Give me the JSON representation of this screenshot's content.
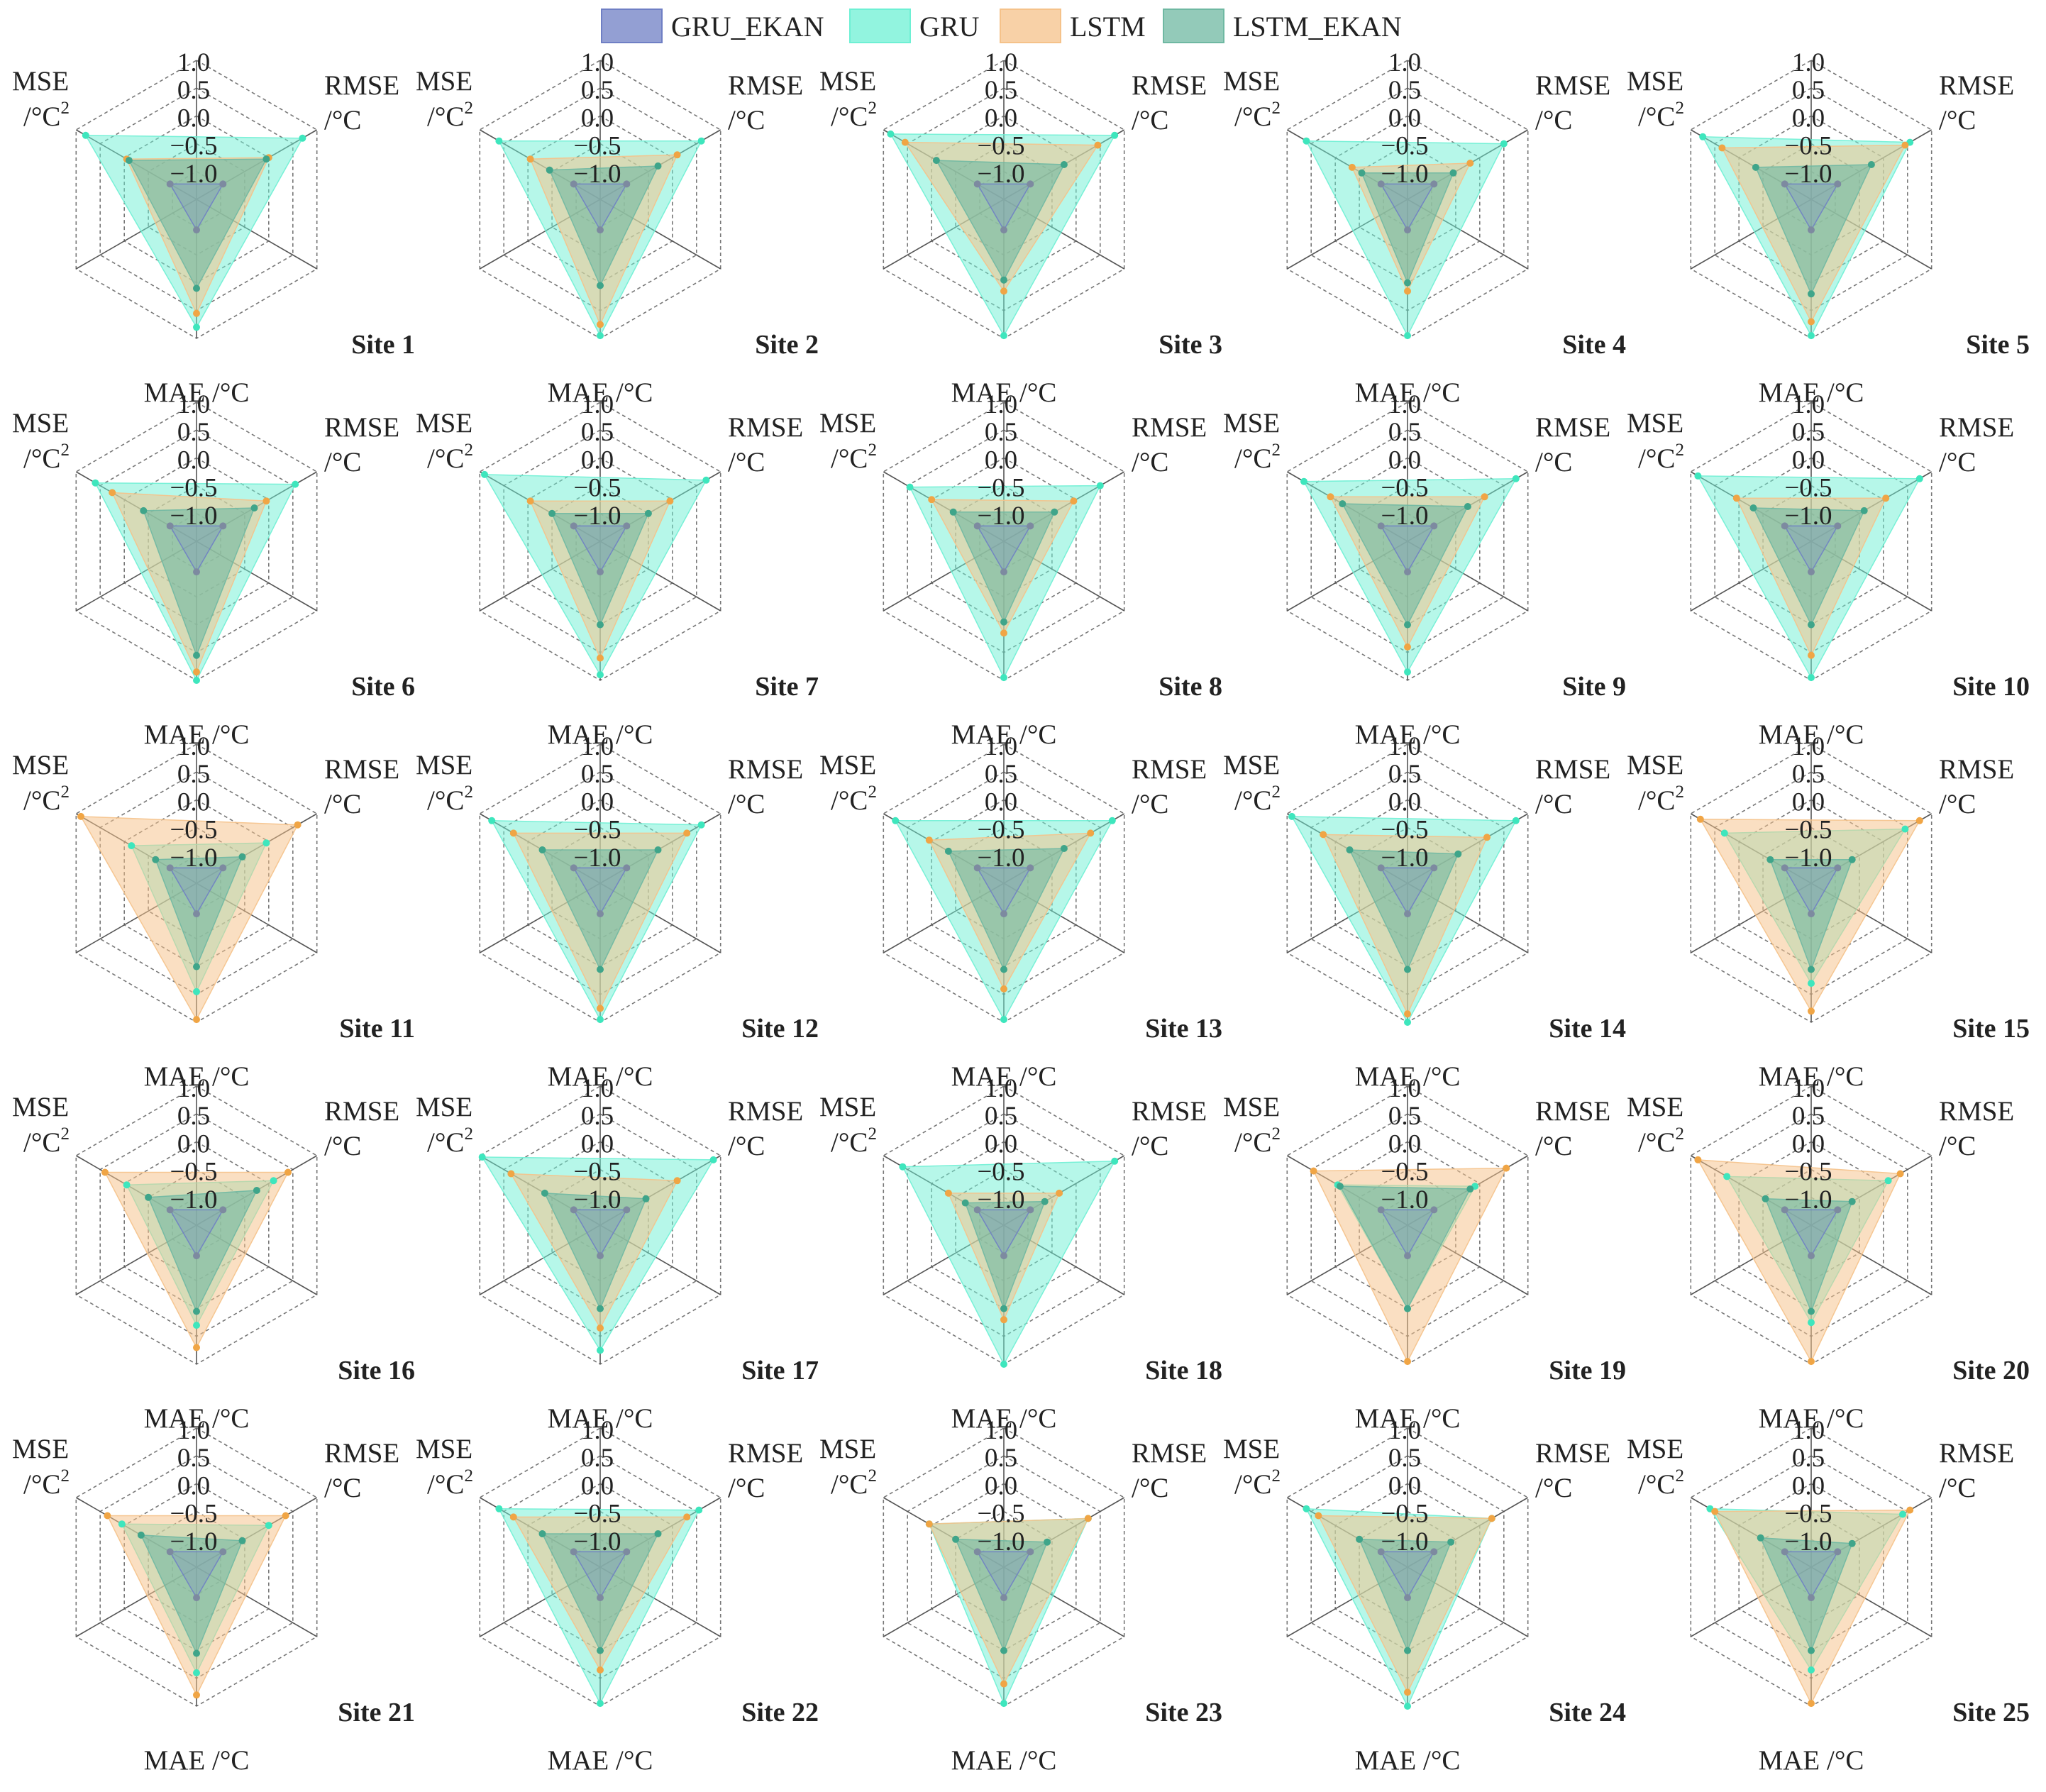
{
  "chart_data": {
    "type": "radar",
    "legend": [
      {
        "name": "GRU_EKAN",
        "color": "#6f7fc4"
      },
      {
        "name": "GRU",
        "color": "#6ef0d4"
      },
      {
        "name": "LSTM",
        "color": "#f5c28a"
      },
      {
        "name": "LSTM_EKAN",
        "color": "#6fb8a2"
      }
    ],
    "marker_colors": {
      "GRU": "#3ee6bd",
      "LSTM": "#f0a545",
      "LSTM_EKAN": "#3fa58a",
      "GRU_EKAN": "#7d8aa0"
    },
    "axes": [
      {
        "name": "MSE",
        "unit": "/°C²",
        "unit_base": "/°C",
        "unit_sup": "2"
      },
      {
        "name": "RMSE",
        "unit": "/°C"
      },
      {
        "name": "MAE",
        "unit": "/°C"
      }
    ],
    "rlim": [
      -1.5,
      1.0
    ],
    "rticks": [
      "1.0",
      "0.5",
      "0.0",
      "−0.5",
      "−1.0"
    ],
    "panels": [
      {
        "site": "Site 1",
        "series": {
          "GRU": [
            0.8,
            0.7,
            0.8
          ],
          "LSTM": [
            -0.05,
            0.0,
            0.55
          ],
          "LSTM_EKAN": [
            -0.1,
            -0.05,
            0.1
          ],
          "GRU_EKAN": [
            -0.95,
            -0.95,
            -0.95
          ]
        }
      },
      {
        "site": "Site 2",
        "series": {
          "GRU": [
            0.6,
            0.6,
            0.95
          ],
          "LSTM": [
            -0.05,
            0.1,
            0.75
          ],
          "LSTM_EKAN": [
            -0.45,
            -0.3,
            0.05
          ],
          "GRU_EKAN": [
            -0.95,
            -0.95,
            -0.95
          ]
        }
      },
      {
        "site": "Site 3",
        "series": {
          "GRU": [
            0.85,
            0.8,
            0.95
          ],
          "LSTM": [
            0.55,
            0.45,
            0.15
          ],
          "LSTM_EKAN": [
            -0.1,
            -0.25,
            -0.05
          ],
          "GRU_EKAN": [
            -0.95,
            -0.95,
            -0.95
          ]
        }
      },
      {
        "site": "Site 4",
        "series": {
          "GRU": [
            0.6,
            0.5,
            0.95
          ],
          "LSTM": [
            -0.35,
            -0.2,
            0.15
          ],
          "LSTM_EKAN": [
            -0.55,
            -0.55,
            0.0
          ],
          "GRU_EKAN": [
            -0.95,
            -0.95,
            -0.95
          ]
        }
      },
      {
        "site": "Site 5",
        "series": {
          "GRU": [
            0.75,
            0.55,
            0.95
          ],
          "LSTM": [
            0.35,
            0.45,
            0.7
          ],
          "LSTM_EKAN": [
            -0.35,
            -0.25,
            0.2
          ],
          "GRU_EKAN": [
            -0.95,
            -0.95,
            -0.95
          ]
        }
      },
      {
        "site": "Site 6",
        "series": {
          "GRU": [
            0.6,
            0.55,
            1.0
          ],
          "LSTM": [
            0.25,
            -0.05,
            0.85
          ],
          "LSTM_EKAN": [
            -0.4,
            -0.3,
            0.55
          ],
          "GRU_EKAN": [
            -0.95,
            -0.95,
            -0.95
          ]
        }
      },
      {
        "site": "Site 7",
        "series": {
          "GRU": [
            0.9,
            0.7,
            0.9
          ],
          "LSTM": [
            -0.05,
            -0.05,
            0.6
          ],
          "LSTM_EKAN": [
            -0.5,
            -0.5,
            0.0
          ],
          "GRU_EKAN": [
            -0.95,
            -0.95,
            -0.95
          ]
        }
      },
      {
        "site": "Site 8",
        "series": {
          "GRU": [
            0.45,
            0.5,
            0.95
          ],
          "LSTM": [
            0.0,
            -0.05,
            0.15
          ],
          "LSTM_EKAN": [
            -0.45,
            -0.45,
            -0.05
          ],
          "GRU_EKAN": [
            -0.95,
            -0.95,
            -0.95
          ]
        }
      },
      {
        "site": "Site 9",
        "series": {
          "GRU": [
            0.65,
            0.75,
            0.85
          ],
          "LSTM": [
            0.1,
            0.1,
            0.4
          ],
          "LSTM_EKAN": [
            -0.15,
            -0.25,
            0.0
          ],
          "GRU_EKAN": [
            -0.95,
            -0.95,
            -0.95
          ]
        }
      },
      {
        "site": "Site 10",
        "series": {
          "GRU": [
            0.85,
            0.75,
            0.95
          ],
          "LSTM": [
            0.05,
            0.05,
            0.55
          ],
          "LSTM_EKAN": [
            -0.3,
            -0.4,
            0.0
          ],
          "GRU_EKAN": [
            -0.95,
            -0.95,
            -0.95
          ]
        }
      },
      {
        "site": "Site 11",
        "series": {
          "GRU": [
            -0.15,
            -0.05,
            0.45
          ],
          "LSTM": [
            0.9,
            0.6,
            0.95
          ],
          "LSTM_EKAN": [
            -0.65,
            -0.55,
            0.0
          ],
          "GRU_EKAN": [
            -0.95,
            -0.95,
            -0.95
          ]
        }
      },
      {
        "site": "Site 12",
        "series": {
          "GRU": [
            0.75,
            0.6,
            0.95
          ],
          "LSTM": [
            0.3,
            0.3,
            0.75
          ],
          "LSTM_EKAN": [
            -0.3,
            -0.3,
            0.05
          ],
          "GRU_EKAN": [
            -0.95,
            -0.95,
            -0.95
          ]
        }
      },
      {
        "site": "Site 13",
        "series": {
          "GRU": [
            0.75,
            0.75,
            0.95
          ],
          "LSTM": [
            0.05,
            0.3,
            0.4
          ],
          "LSTM_EKAN": [
            -0.35,
            -0.25,
            0.05
          ],
          "GRU_EKAN": [
            -0.95,
            -0.95,
            -0.95
          ]
        }
      },
      {
        "site": "Site 14",
        "series": {
          "GRU": [
            0.9,
            0.75,
            1.0
          ],
          "LSTM": [
            0.25,
            0.15,
            0.85
          ],
          "LSTM_EKAN": [
            -0.3,
            -0.45,
            0.05
          ],
          "GRU_EKAN": [
            -0.95,
            -0.95,
            -0.95
          ]
        }
      },
      {
        "site": "Site 15",
        "series": {
          "GRU": [
            0.3,
            0.45,
            0.3
          ],
          "LSTM": [
            0.8,
            0.75,
            0.8
          ],
          "LSTM_EKAN": [
            -0.65,
            -0.65,
            0.05
          ],
          "GRU_EKAN": [
            -0.95,
            -0.95,
            -0.95
          ]
        }
      },
      {
        "site": "Site 16",
        "series": {
          "GRU": [
            -0.05,
            0.1,
            0.3
          ],
          "LSTM": [
            0.4,
            0.4,
            0.7
          ],
          "LSTM_EKAN": [
            -0.5,
            -0.25,
            0.05
          ],
          "GRU_EKAN": [
            -0.95,
            -0.95,
            -0.95
          ]
        }
      },
      {
        "site": "Site 17",
        "series": {
          "GRU": [
            0.95,
            0.85,
            0.75
          ],
          "LSTM": [
            0.35,
            0.1,
            0.35
          ],
          "LSTM_EKAN": [
            -0.35,
            -0.55,
            0.0
          ],
          "GRU_EKAN": [
            -0.95,
            -0.95,
            -0.95
          ]
        }
      },
      {
        "site": "Site 18",
        "series": {
          "GRU": [
            0.6,
            0.8,
            1.0
          ],
          "LSTM": [
            -0.35,
            -0.35,
            0.2
          ],
          "LSTM_EKAN": [
            -0.7,
            -0.65,
            0.0
          ],
          "GRU_EKAN": [
            -0.95,
            -0.95,
            -0.95
          ]
        }
      },
      {
        "site": "Site 19",
        "series": {
          "GRU": [
            -0.05,
            -0.1,
            0.0
          ],
          "LSTM": [
            0.45,
            0.55,
            0.95
          ],
          "LSTM_EKAN": [
            -0.1,
            -0.2,
            0.0
          ],
          "GRU_EKAN": [
            -0.95,
            -0.95,
            -0.95
          ]
        }
      },
      {
        "site": "Site 20",
        "series": {
          "GRU": [
            0.25,
            0.1,
            0.25
          ],
          "LSTM": [
            0.85,
            0.35,
            0.95
          ],
          "LSTM_EKAN": [
            -0.55,
            -0.65,
            0.05
          ],
          "GRU_EKAN": [
            -0.95,
            -0.95,
            -0.95
          ]
        }
      },
      {
        "site": "Site 21",
        "series": {
          "GRU": [
            0.05,
            0.0,
            0.4
          ],
          "LSTM": [
            0.35,
            0.35,
            0.8
          ],
          "LSTM_EKAN": [
            -0.35,
            -0.55,
            0.05
          ],
          "GRU_EKAN": [
            -0.95,
            -0.95,
            -0.95
          ]
        }
      },
      {
        "site": "Site 22",
        "series": {
          "GRU": [
            0.6,
            0.55,
            0.95
          ],
          "LSTM": [
            0.3,
            0.3,
            0.35
          ],
          "LSTM_EKAN": [
            -0.3,
            -0.3,
            0.0
          ],
          "GRU_EKAN": [
            -0.95,
            -0.95,
            -0.95
          ]
        }
      },
      {
        "site": "Site 23",
        "series": {
          "GRU": [
            0.05,
            0.25,
            0.95
          ],
          "LSTM": [
            0.05,
            0.25,
            0.6
          ],
          "LSTM_EKAN": [
            -0.5,
            -0.6,
            0.0
          ],
          "GRU_EKAN": [
            -0.95,
            -0.95,
            -0.95
          ]
        }
      },
      {
        "site": "Site 24",
        "series": {
          "GRU": [
            0.6,
            0.25,
            1.0
          ],
          "LSTM": [
            0.35,
            0.25,
            0.75
          ],
          "LSTM_EKAN": [
            -0.5,
            -0.6,
            0.0
          ],
          "GRU_EKAN": [
            -0.95,
            -0.95,
            -0.95
          ]
        }
      },
      {
        "site": "Site 25",
        "series": {
          "GRU": [
            0.6,
            0.4,
            0.35
          ],
          "LSTM": [
            0.5,
            0.55,
            0.95
          ],
          "LSTM_EKAN": [
            -0.45,
            -0.65,
            0.0
          ],
          "GRU_EKAN": [
            -0.95,
            -0.95,
            -0.95
          ]
        }
      }
    ]
  }
}
